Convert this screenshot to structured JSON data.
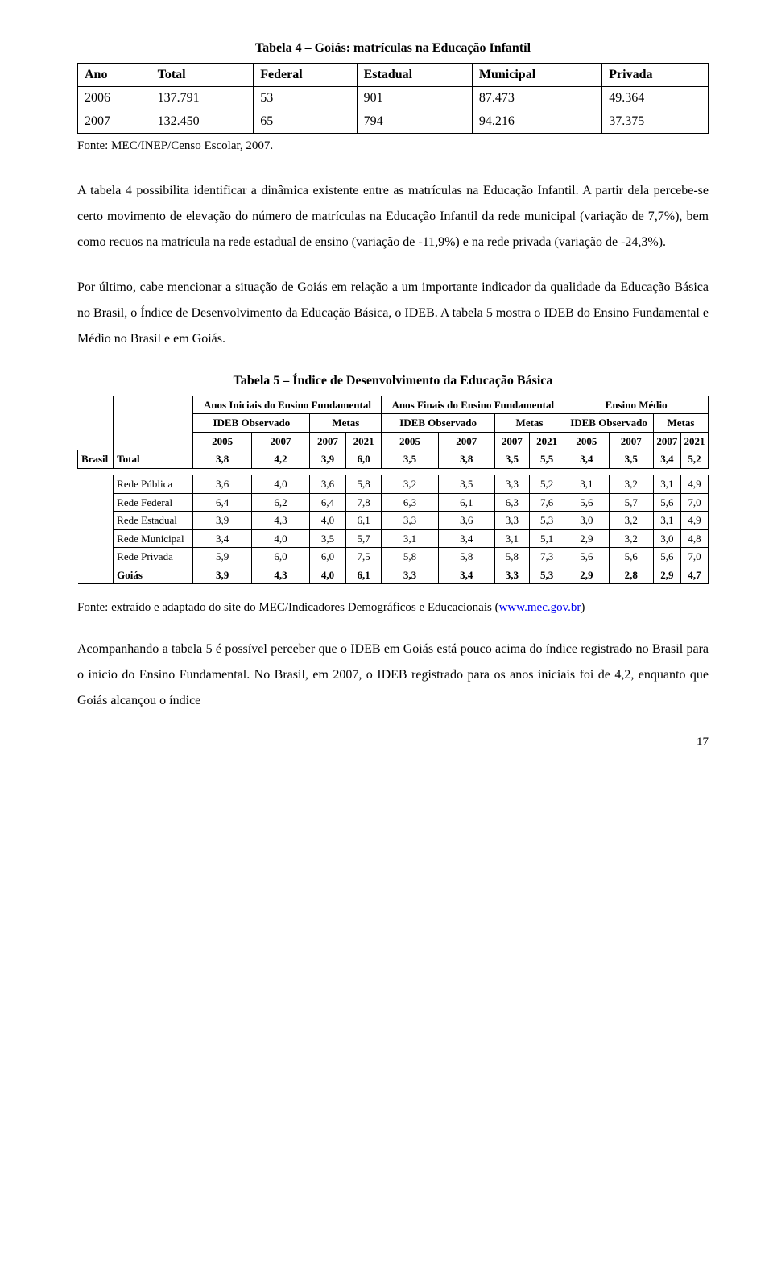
{
  "table4": {
    "title": "Tabela 4 – Goiás: matrículas na Educação Infantil",
    "headers": [
      "Ano",
      "Total",
      "Federal",
      "Estadual",
      "Municipal",
      "Privada"
    ],
    "rows": [
      [
        "2006",
        "137.791",
        "53",
        "901",
        "87.473",
        "49.364"
      ],
      [
        "2007",
        "132.450",
        "65",
        "794",
        "94.216",
        "37.375"
      ]
    ],
    "source": "Fonte: MEC/INEP/Censo Escolar, 2007."
  },
  "para1": "A tabela 4 possibilita identificar a dinâmica existente entre as matrículas na Educação Infantil. A partir dela percebe-se certo movimento de elevação do número de matrículas na Educação Infantil da rede municipal (variação de 7,7%), bem como recuos na matrícula na rede estadual de ensino (variação de -11,9%) e na rede privada (variação de -24,3%).",
  "para2": "Por último, cabe mencionar a situação de Goiás em relação a um importante indicador da qualidade da Educação Básica no Brasil, o Índice de Desenvolvimento da Educação Básica, o IDEB. A tabela 5 mostra o IDEB do Ensino Fundamental e Médio no Brasil e em Goiás.",
  "table5": {
    "title": "Tabela 5 – Índice de Desenvolvimento da Educação Básica",
    "group_headers": [
      "Anos Iniciais do Ensino Fundamental",
      "Anos Finais do Ensino Fundamental",
      "Ensino Médio"
    ],
    "sub_headers": {
      "obs": "IDEB Observado",
      "metas": "Metas"
    },
    "year_cols": [
      "2005",
      "2007",
      "2007",
      "2021",
      "2005",
      "2007",
      "2007",
      "2021",
      "2005",
      "2007",
      "2007",
      "2021"
    ],
    "rows": [
      {
        "label1": "Brasil",
        "label2": "Total",
        "vals": [
          "3,8",
          "4,2",
          "3,9",
          "6,0",
          "3,5",
          "3,8",
          "3,5",
          "5,5",
          "3,4",
          "3,5",
          "3,4",
          "5,2"
        ],
        "bold": true
      },
      {
        "label1": "",
        "label2": "Rede Pública",
        "vals": [
          "3,6",
          "4,0",
          "3,6",
          "5,8",
          "3,2",
          "3,5",
          "3,3",
          "5,2",
          "3,1",
          "3,2",
          "3,1",
          "4,9"
        ]
      },
      {
        "label1": "",
        "label2": "Rede Federal",
        "vals": [
          "6,4",
          "6,2",
          "6,4",
          "7,8",
          "6,3",
          "6,1",
          "6,3",
          "7,6",
          "5,6",
          "5,7",
          "5,6",
          "7,0"
        ]
      },
      {
        "label1": "",
        "label2": "Rede Estadual",
        "vals": [
          "3,9",
          "4,3",
          "4,0",
          "6,1",
          "3,3",
          "3,6",
          "3,3",
          "5,3",
          "3,0",
          "3,2",
          "3,1",
          "4,9"
        ]
      },
      {
        "label1": "",
        "label2": "Rede Municipal",
        "vals": [
          "3,4",
          "4,0",
          "3,5",
          "5,7",
          "3,1",
          "3,4",
          "3,1",
          "5,1",
          "2,9",
          "3,2",
          "3,0",
          "4,8"
        ]
      },
      {
        "label1": "",
        "label2": "Rede Privada",
        "vals": [
          "5,9",
          "6,0",
          "6,0",
          "7,5",
          "5,8",
          "5,8",
          "5,8",
          "7,3",
          "5,6",
          "5,6",
          "5,6",
          "7,0"
        ]
      },
      {
        "label1": "",
        "label2": "Goiás",
        "vals": [
          "3,9",
          "4,3",
          "4,0",
          "6,1",
          "3,3",
          "3,4",
          "3,3",
          "5,3",
          "2,9",
          "2,8",
          "2,9",
          "4,7"
        ],
        "bold": true
      }
    ],
    "source_prefix": "Fonte: extraído e adaptado do site do MEC/Indicadores Demográficos e Educacionais (",
    "source_link": "www.mec.gov.br",
    "source_suffix": ")"
  },
  "para3": "Acompanhando a tabela 5 é possível perceber que o IDEB em Goiás está pouco acima do índice registrado no Brasil para o início do Ensino Fundamental. No Brasil, em 2007, o IDEB registrado para os anos iniciais foi de 4,2, enquanto que Goiás alcançou o índice",
  "page_number": "17"
}
